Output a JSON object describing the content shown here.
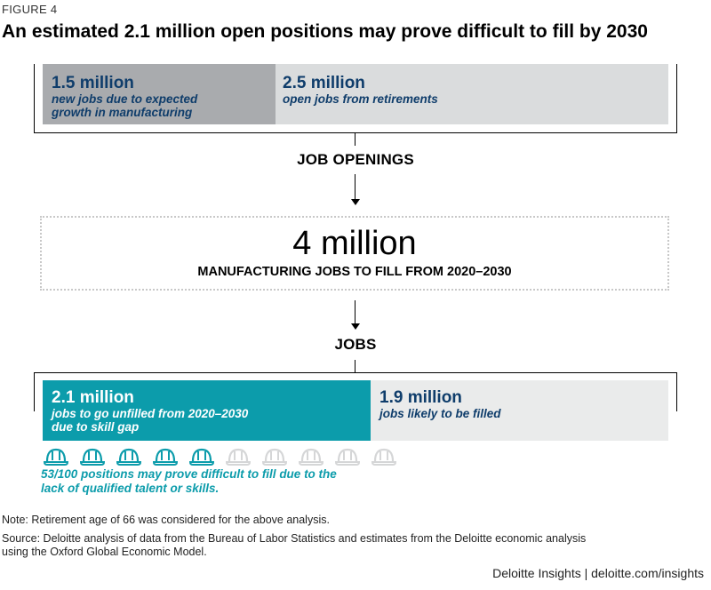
{
  "figure_label": "FIGURE 4",
  "title": "An estimated 2.1 million open positions may prove difficult to fill by 2030",
  "top_bar": {
    "growth": {
      "value": "1.5 million",
      "line1": "new jobs due to expected",
      "line2": "growth in manufacturing"
    },
    "retirement": {
      "value": "2.5 million",
      "line1": "open jobs from retirements"
    }
  },
  "job_openings_label": "JOB OPENINGS",
  "total": {
    "value": "4 million",
    "label": "MANUFACTURING JOBS TO FILL FROM 2020–2030"
  },
  "jobs_label": "JOBS",
  "bottom_bar": {
    "unfilled": {
      "value": "2.1 million",
      "line1": "jobs to go unfilled from 2020–2030",
      "line2": "due to skill gap"
    },
    "filled": {
      "value": "1.9 million",
      "line1": "jobs likely to be filled"
    }
  },
  "hard_hats": {
    "filled_count": 5,
    "total_count": 10,
    "icon": "hard-hat-icon",
    "filled_color": "#0c9cab",
    "empty_color": "#d5d6d7"
  },
  "positions_note": {
    "line1": "53/100 positions may prove difficult to fill due to the",
    "line2": "lack of qualified talent or skills."
  },
  "note": "Note: Retirement age of 66 was considered for the above analysis.",
  "source": {
    "line1": "Source: Deloitte analysis of data from the Bureau of Labor Statistics and estimates from the Deloitte economic analysis",
    "line2": "using the Oxford Global Economic Model."
  },
  "brand": "Deloitte Insights | deloitte.com/insights",
  "colors": {
    "navy": "#0f3d6b",
    "teal": "#0c9cab",
    "gray_dark": "#a9abae",
    "gray_light": "#dadcdd"
  }
}
